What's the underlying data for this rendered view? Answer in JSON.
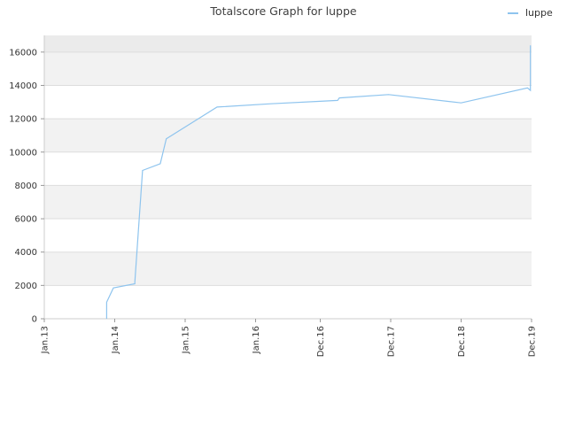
{
  "chart_data": {
    "type": "line",
    "title": "Totalscore Graph for luppe",
    "xlabel": "",
    "ylabel": "",
    "x_ticks": [
      "Jan.13",
      "Jan.14",
      "Jan.15",
      "Jan.16",
      "Dec.16",
      "Dec.17",
      "Dec.18",
      "Dec.19"
    ],
    "y_ticks": [
      0,
      2000,
      4000,
      6000,
      8000,
      10000,
      12000,
      14000,
      16000
    ],
    "ylim": [
      0,
      17000
    ],
    "grid": "horizontal bands",
    "legend_position": "top-right",
    "series": [
      {
        "name": "luppe",
        "color": "#8ec4ee",
        "points": [
          {
            "x": "2013-11-20",
            "y": 0
          },
          {
            "x": "2013-11-20",
            "y": 1000
          },
          {
            "x": "2013-12-25",
            "y": 1850
          },
          {
            "x": "2014-04-15",
            "y": 2100
          },
          {
            "x": "2014-04-15",
            "y": 2200
          },
          {
            "x": "2014-05-25",
            "y": 8900
          },
          {
            "x": "2014-08-25",
            "y": 9300
          },
          {
            "x": "2014-09-25",
            "y": 10800
          },
          {
            "x": "2015-06-15",
            "y": 12700
          },
          {
            "x": "2016-03-20",
            "y": 12900
          },
          {
            "x": "2016-12-01",
            "y": 13050
          },
          {
            "x": "2017-03-01",
            "y": 13100
          },
          {
            "x": "2017-03-10",
            "y": 13250
          },
          {
            "x": "2017-11-20",
            "y": 13450
          },
          {
            "x": "2018-12-01",
            "y": 12950
          },
          {
            "x": "2019-11-10",
            "y": 13850
          },
          {
            "x": "2019-11-25",
            "y": 13700
          },
          {
            "x": "2019-11-25",
            "y": 16400
          }
        ]
      }
    ]
  }
}
